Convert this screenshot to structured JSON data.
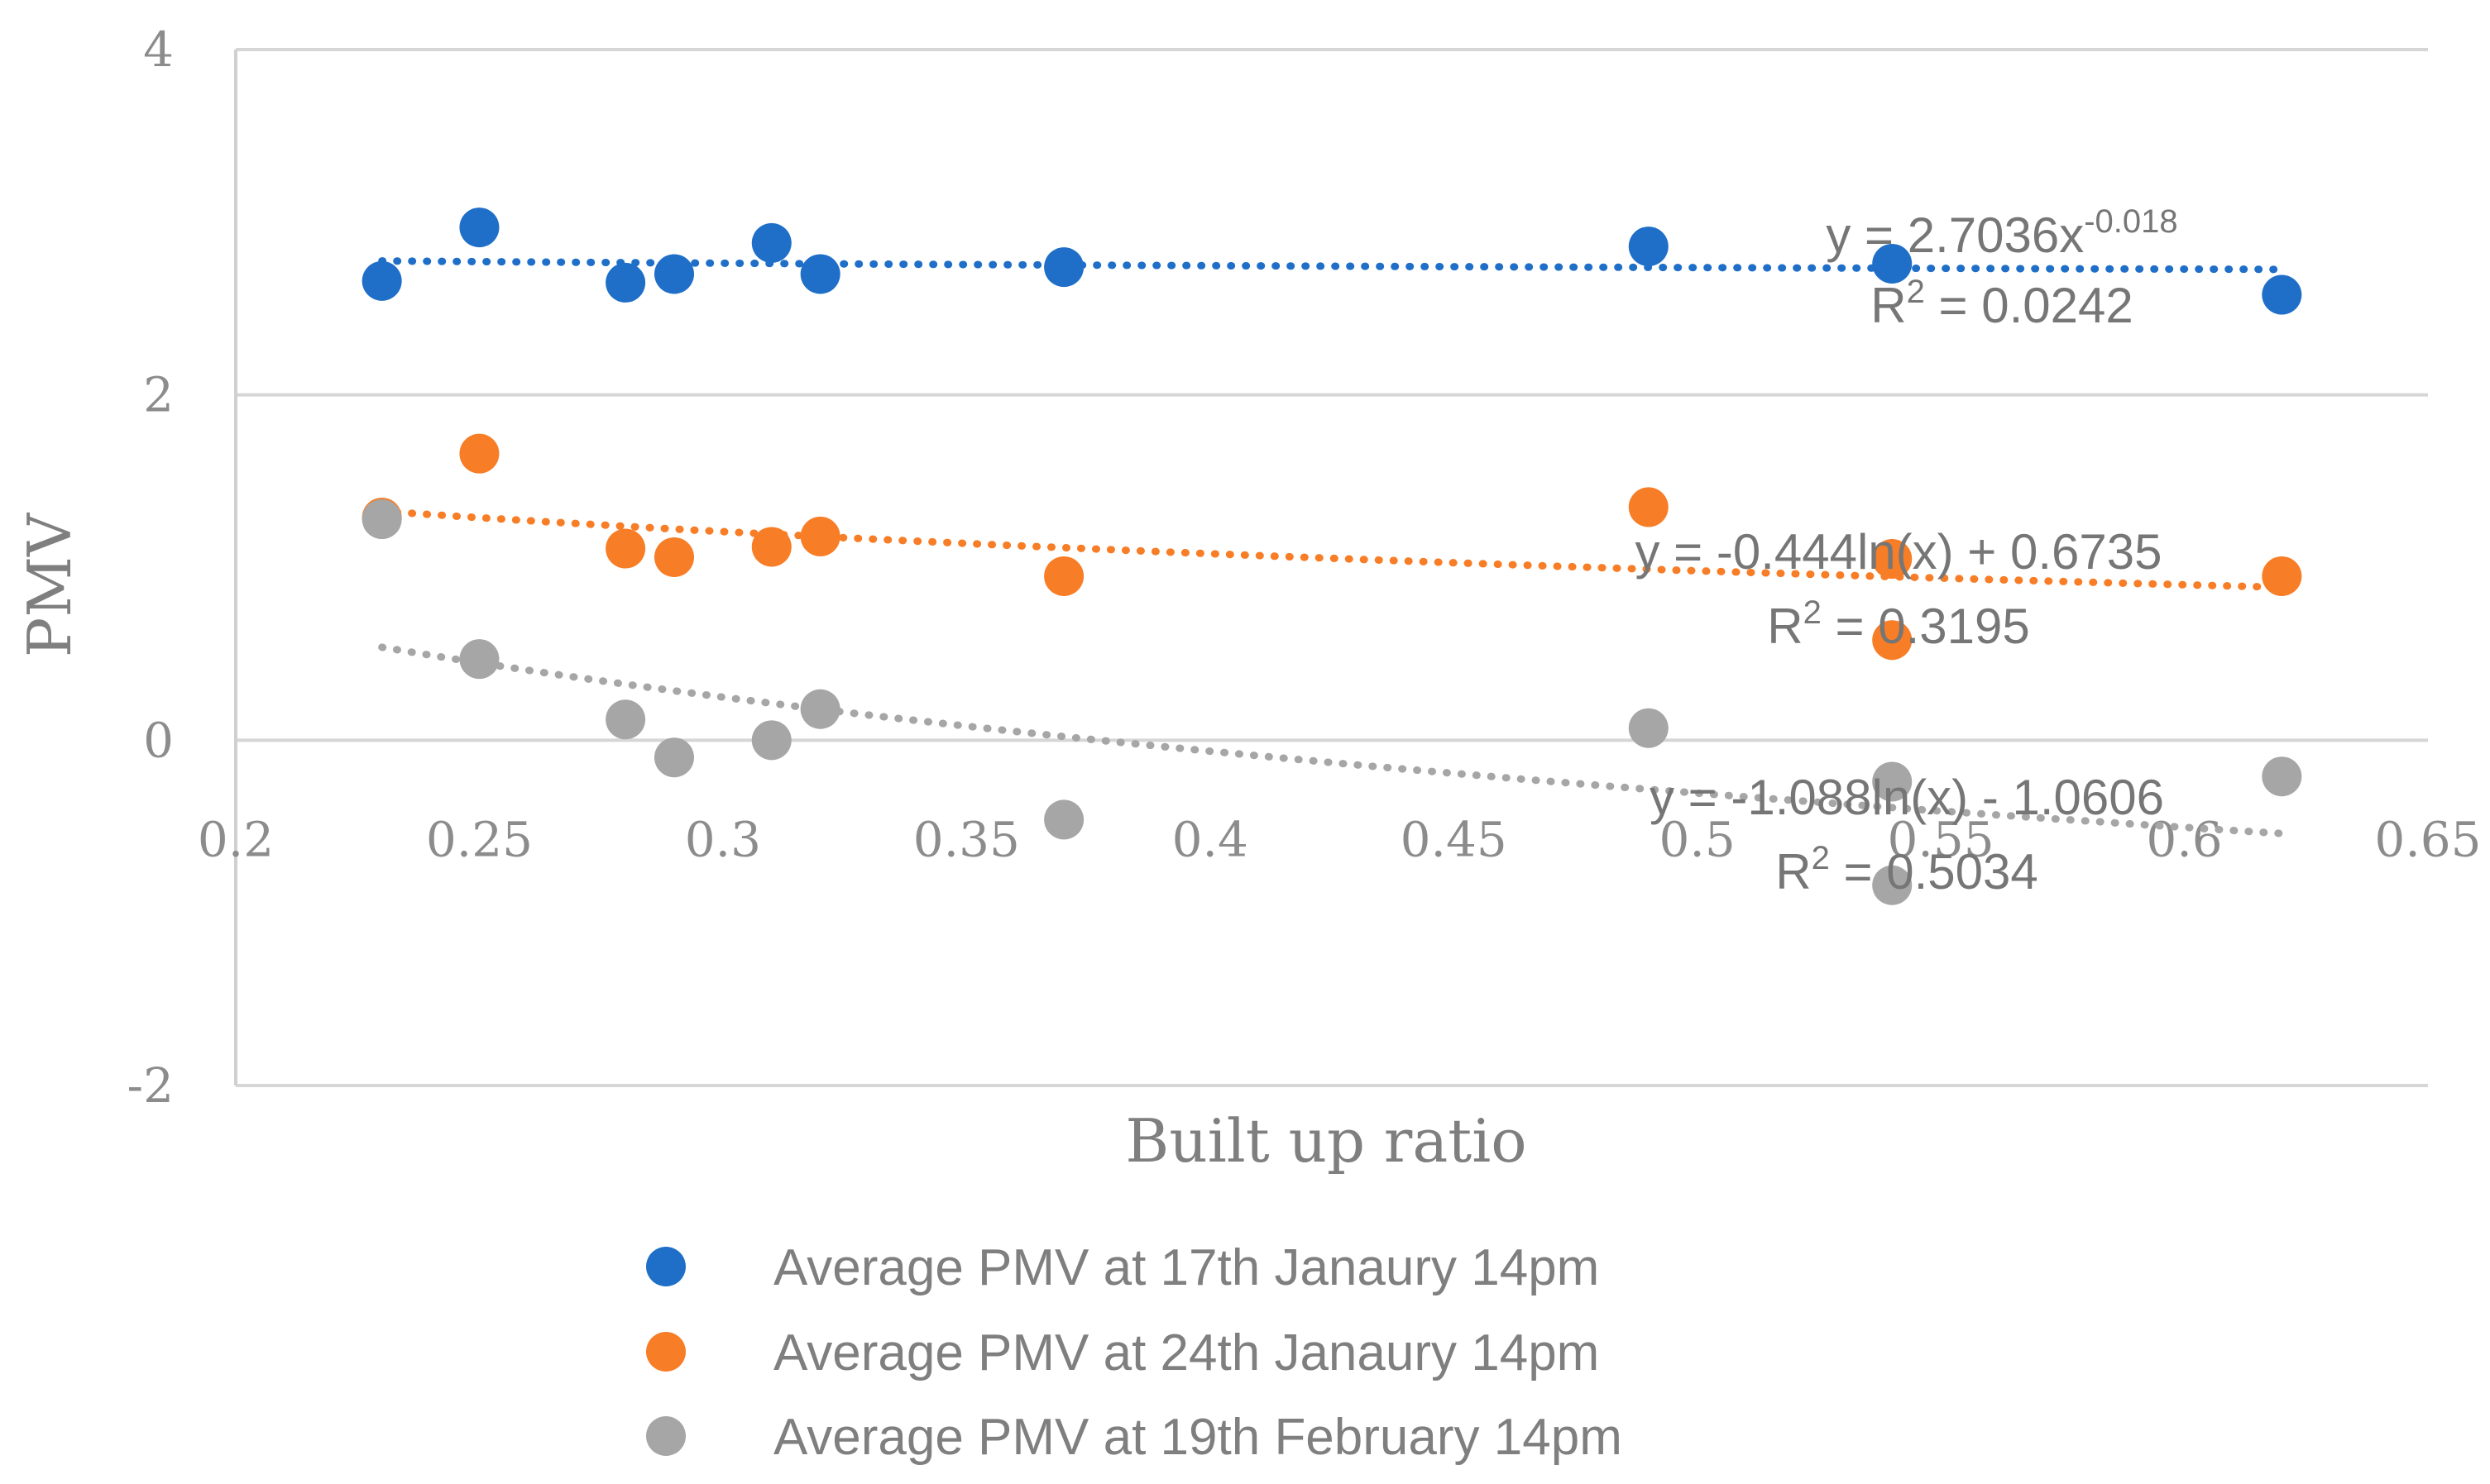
{
  "chart_data": {
    "type": "scatter",
    "title": "",
    "xlabel": "Built up ratio",
    "ylabel": "PMV",
    "xlim": [
      0.2,
      0.65
    ],
    "ylim": [
      -2,
      4
    ],
    "x_ticks": [
      "0.2",
      "0.25",
      "0.3",
      "0.35",
      "0.4",
      "0.45",
      "0.5",
      "0.55",
      "0.6",
      "0.65"
    ],
    "y_ticks": [
      "4",
      "2",
      "0",
      "-2"
    ],
    "grid": "horizontal",
    "legend_position": "bottom",
    "series": [
      {
        "name": "Average PMV at 17th Janaury  14pm",
        "color": "#1f6fc8",
        "x": [
          0.23,
          0.25,
          0.28,
          0.29,
          0.31,
          0.32,
          0.37,
          0.49,
          0.54,
          0.62
        ],
        "y": [
          2.66,
          2.97,
          2.65,
          2.7,
          2.88,
          2.7,
          2.74,
          2.86,
          2.76,
          2.58
        ],
        "trendline": {
          "type": "power",
          "a": 2.7036,
          "b": -0.018
        },
        "equation": {
          "prefix": "y = 2.7036x",
          "exponent": "-0.018",
          "r2_prefix": "R",
          "r2_exp": "2",
          "r2_value": " = 0.0242"
        }
      },
      {
        "name": "Average PMV  at 24th Janaury  14pm",
        "color": "#f77d26",
        "x": [
          0.23,
          0.25,
          0.28,
          0.29,
          0.31,
          0.32,
          0.37,
          0.49,
          0.54,
          0.54,
          0.62
        ],
        "y": [
          1.29,
          1.66,
          1.11,
          1.06,
          1.12,
          1.18,
          0.95,
          1.35,
          1.05,
          0.58,
          0.95
        ],
        "trendline": {
          "type": "log",
          "a": -0.444,
          "b": 0.6735
        },
        "equation": {
          "prefix": "y = -0.444ln(x) + 0.6735",
          "exponent": "",
          "r2_prefix": "R",
          "r2_exp": "2",
          "r2_value": " = 0.3195"
        }
      },
      {
        "name": "Average PMV at 19th February  14pm",
        "color": "#a6a6a6",
        "x": [
          0.23,
          0.25,
          0.28,
          0.29,
          0.31,
          0.32,
          0.37,
          0.49,
          0.54,
          0.54,
          0.62
        ],
        "y": [
          1.28,
          0.47,
          0.12,
          -0.1,
          0.0,
          0.18,
          -0.46,
          0.07,
          -0.24,
          -0.84,
          -0.21
        ],
        "trendline": {
          "type": "log",
          "a": -1.088,
          "b": -1.0606
        },
        "equation": {
          "prefix": "y = -1.088ln(x) - 1.0606",
          "exponent": "",
          "r2_prefix": "R",
          "r2_exp": "2",
          "r2_value": " = 0.5034"
        }
      }
    ]
  }
}
